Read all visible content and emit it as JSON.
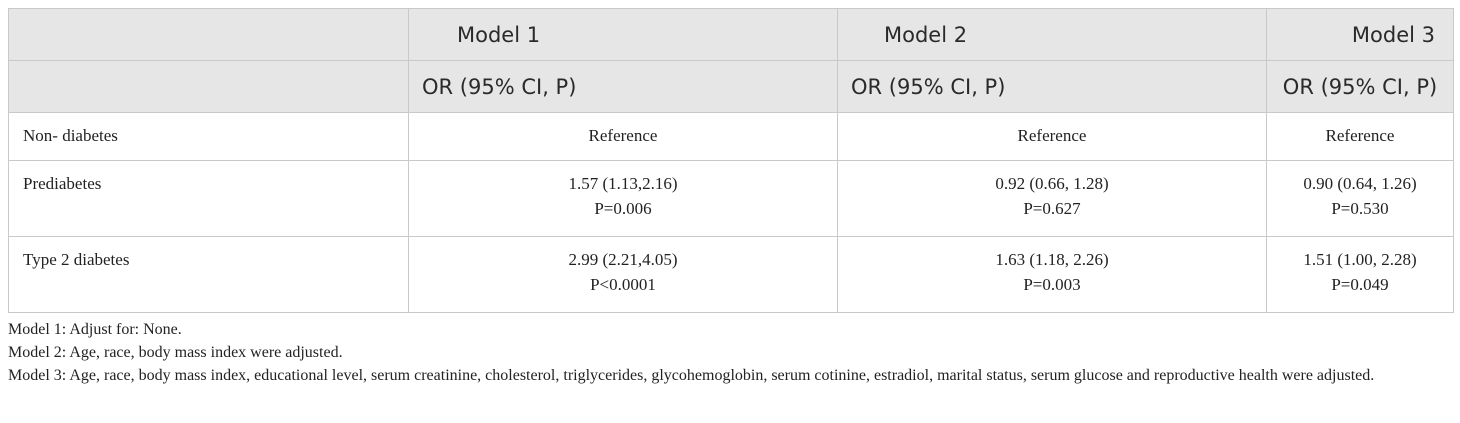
{
  "table": {
    "headers": {
      "row1": [
        "",
        "Model 1",
        "Model 2",
        "Model 3"
      ],
      "row2": [
        "OR (95% CI, P)",
        "OR (95% CI, P)",
        "OR (95% CI, P)"
      ]
    },
    "rows": [
      {
        "label": "Non- diabetes",
        "cells": [
          {
            "or": "Reference",
            "p": ""
          },
          {
            "or": "Reference",
            "p": ""
          },
          {
            "or": "Reference",
            "p": ""
          }
        ]
      },
      {
        "label": "Prediabetes",
        "cells": [
          {
            "or": "1.57 (1.13,2.16)",
            "p": "P=0.006"
          },
          {
            "or": "0.92 (0.66, 1.28)",
            "p": "P=0.627"
          },
          {
            "or": "0.90 (0.64, 1.26)",
            "p": "P=0.530"
          }
        ]
      },
      {
        "label": "Type 2 diabetes",
        "cells": [
          {
            "or": "2.99 (2.21,4.05)",
            "p": "P<0.0001"
          },
          {
            "or": "1.63 (1.18, 2.26)",
            "p": "P=0.003"
          },
          {
            "or": "1.51 (1.00, 2.28)",
            "p": "P=0.049"
          }
        ]
      }
    ]
  },
  "notes": [
    "Model 1: Adjust for: None.",
    "Model 2: Age, race, body mass index were adjusted.",
    "Model 3: Age, race, body mass index, educational level, serum creatinine, cholesterol, triglycerides, glycohemoglobin, serum cotinine, estradiol, marital status, serum glucose and reproductive health were adjusted."
  ]
}
